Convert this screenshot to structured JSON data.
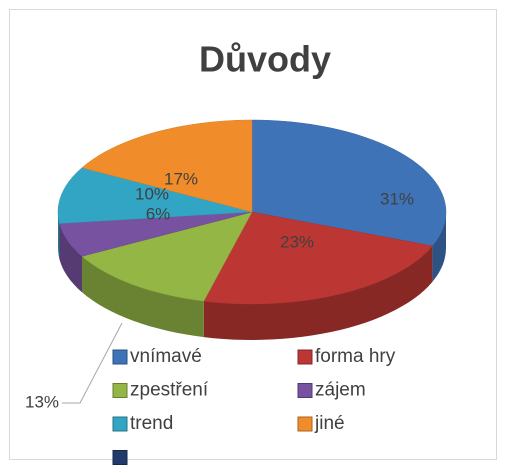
{
  "chart_data": {
    "type": "pie",
    "title": "Důvody",
    "categories": [
      "vnímavé",
      "forma hry",
      "zpestření",
      "zájem",
      "trend",
      "jiné",
      null
    ],
    "values": [
      31,
      23,
      13,
      6,
      10,
      17,
      0
    ],
    "value_labels": [
      "31%",
      "23%",
      "13%",
      "6%",
      "10%",
      "17%",
      null
    ],
    "colors": [
      "#3f73b8",
      "#bc3733",
      "#93b645",
      "#7752a0",
      "#33a5c4",
      "#f08d2a",
      "#1f3a6b"
    ],
    "legend": "bottom"
  }
}
